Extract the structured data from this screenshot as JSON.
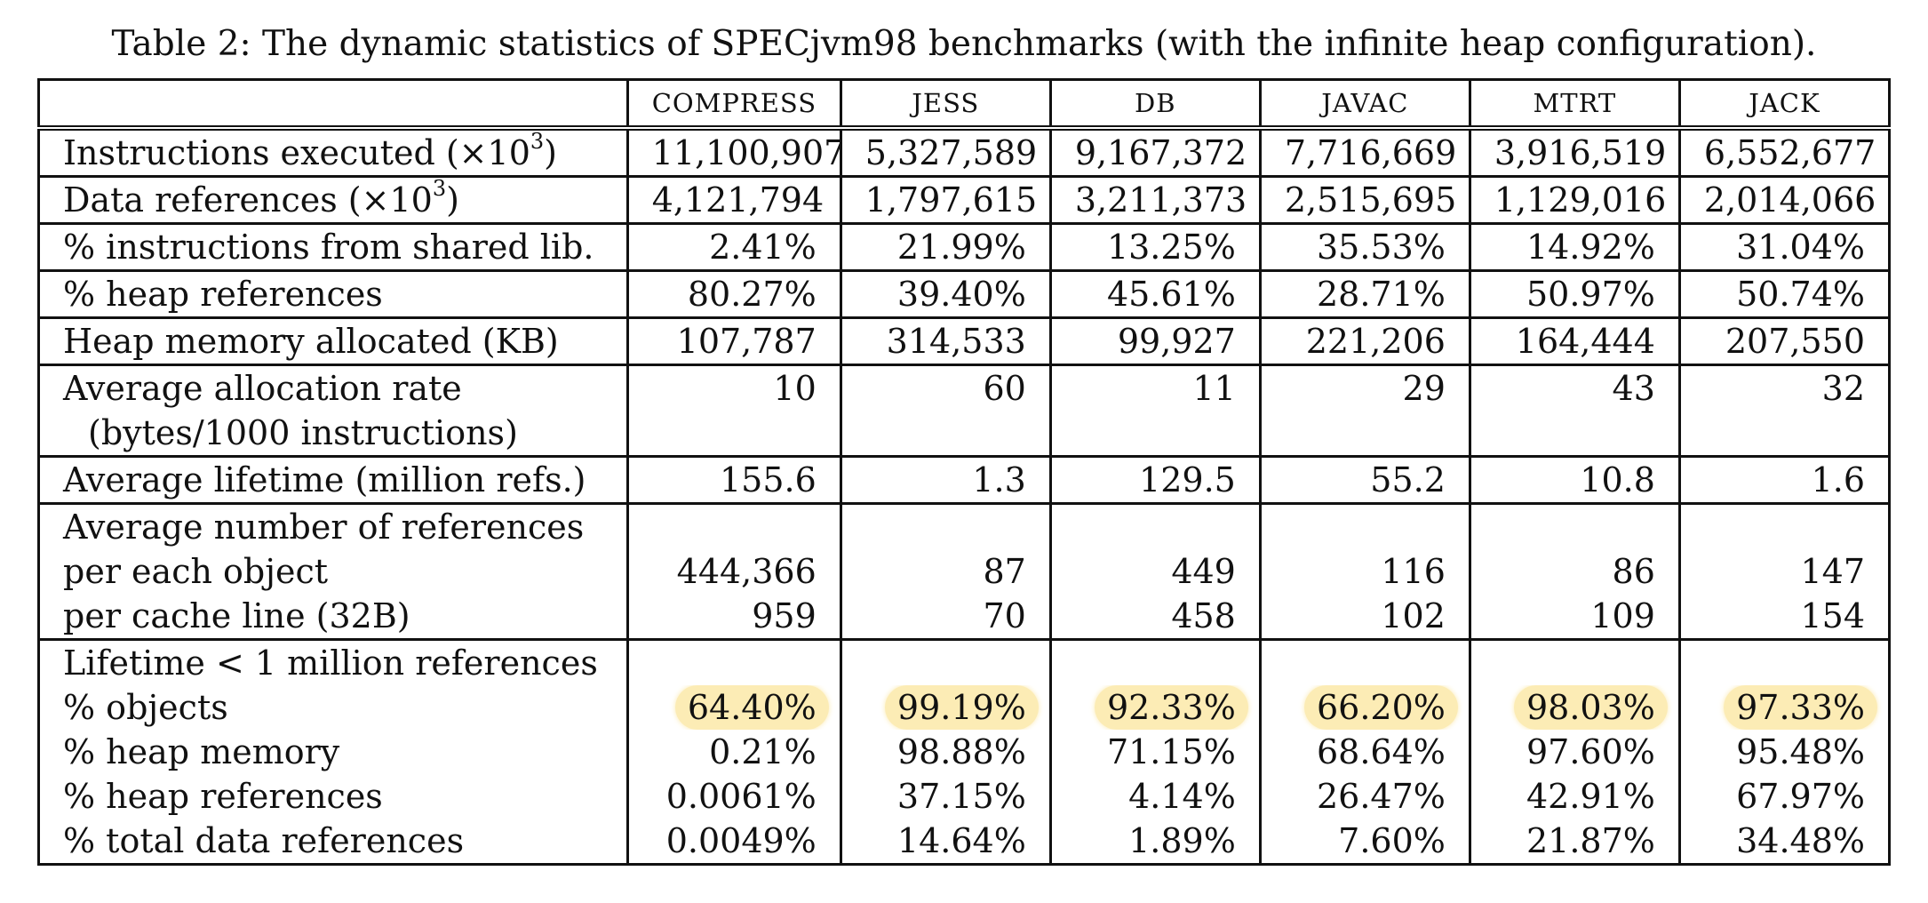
{
  "caption": "Table 2: The dynamic statistics of SPECjvm98 benchmarks (with the infinite heap configuration).",
  "columns": [
    "COMPRESS",
    "JESS",
    "DB",
    "JAVAC",
    "MTRT",
    "JACK"
  ],
  "rows": {
    "instructions": {
      "label": "Instructions executed (×10",
      "exp": "3",
      "close": ")",
      "values": [
        "11,100,907",
        "5,327,589",
        "9,167,372",
        "7,716,669",
        "3,916,519",
        "6,552,677"
      ]
    },
    "data_refs": {
      "label": "Data references (×10",
      "exp": "3",
      "close": ")",
      "values": [
        "4,121,794",
        "1,797,615",
        "3,211,373",
        "2,515,695",
        "1,129,016",
        "2,014,066"
      ]
    },
    "shared_lib": {
      "label": "% instructions from shared lib.",
      "values": [
        "2.41%",
        "21.99%",
        "13.25%",
        "35.53%",
        "14.92%",
        "31.04%"
      ]
    },
    "heap_refs": {
      "label": "% heap references",
      "values": [
        "80.27%",
        "39.40%",
        "45.61%",
        "28.71%",
        "50.97%",
        "50.74%"
      ]
    },
    "heap_alloc": {
      "label": "Heap memory allocated (KB)",
      "values": [
        "107,787",
        "314,533",
        "99,927",
        "221,206",
        "164,444",
        "207,550"
      ]
    },
    "alloc_rate": {
      "label": "Average allocation rate",
      "sublabel": "(bytes/1000 instructions)",
      "values": [
        "10",
        "60",
        "11",
        "29",
        "43",
        "32"
      ]
    },
    "lifetime": {
      "label": "Average lifetime (million refs.)",
      "values": [
        "155.6",
        "1.3",
        "129.5",
        "55.2",
        "10.8",
        "1.6"
      ]
    },
    "avg_refs": {
      "label": "Average number of references",
      "per_object": {
        "label": "per each object",
        "values": [
          "444,366",
          "87",
          "449",
          "116",
          "86",
          "147"
        ]
      },
      "per_line": {
        "label": "per cache line (32B)",
        "values": [
          "959",
          "70",
          "458",
          "102",
          "109",
          "154"
        ]
      }
    },
    "short_lived": {
      "label": "Lifetime < 1 million references",
      "objects": {
        "label": "% objects",
        "values": [
          "64.40%",
          "99.19%",
          "92.33%",
          "66.20%",
          "98.03%",
          "97.33%"
        ]
      },
      "heap_memory": {
        "label": "% heap memory",
        "values": [
          "0.21%",
          "98.88%",
          "71.15%",
          "68.64%",
          "97.60%",
          "95.48%"
        ]
      },
      "heap_refs": {
        "label": "% heap references",
        "values": [
          "0.0061%",
          "37.15%",
          "4.14%",
          "26.47%",
          "42.91%",
          "67.97%"
        ]
      },
      "total_refs": {
        "label": "% total data references",
        "values": [
          "0.0049%",
          "14.64%",
          "1.89%",
          "7.60%",
          "21.87%",
          "34.48%"
        ]
      }
    }
  },
  "highlight_color": "#fadc78"
}
